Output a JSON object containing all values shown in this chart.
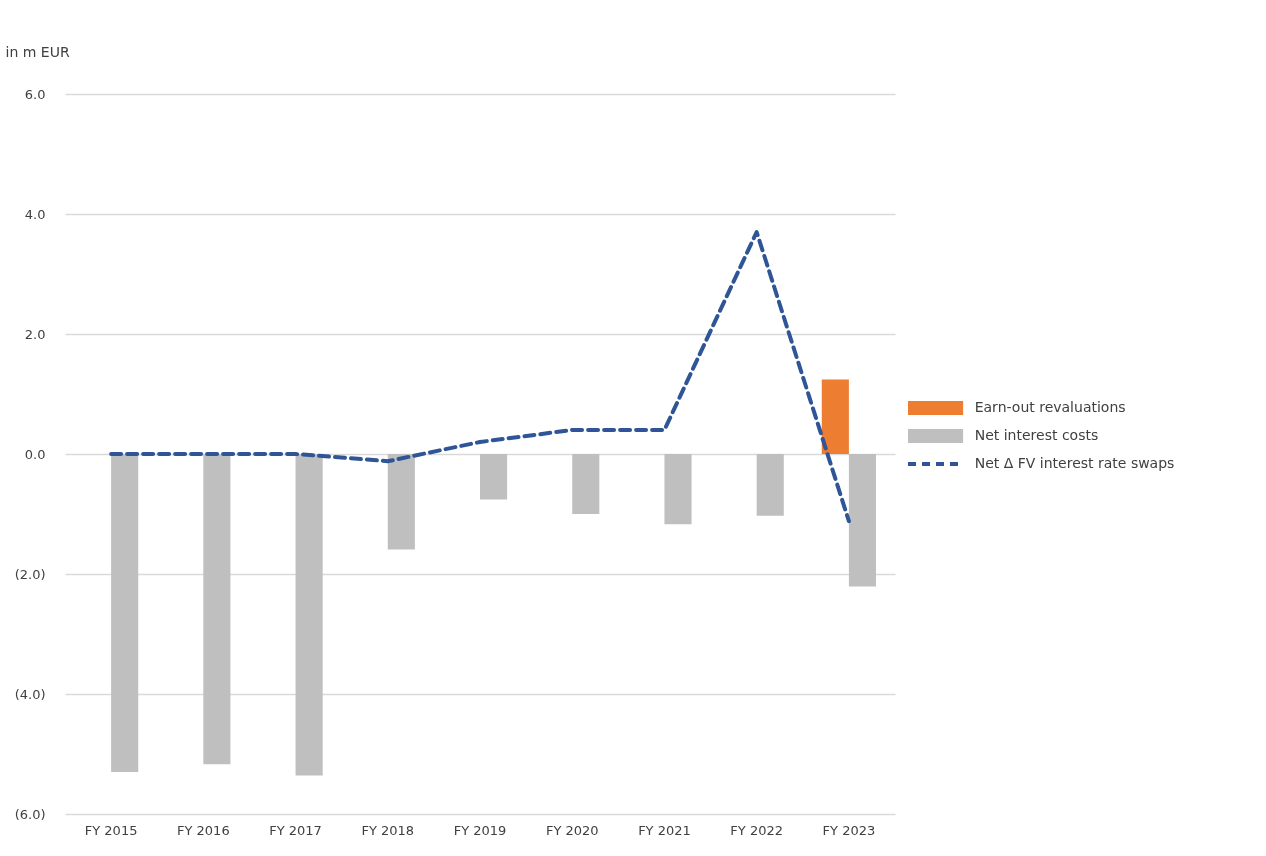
{
  "chart_data": {
    "type": "bar",
    "ylabel": "in m EUR",
    "categories": [
      "FY 2015",
      "FY 2016",
      "FY 2017",
      "FY 2018",
      "FY 2019",
      "FY 2020",
      "FY 2021",
      "FY 2022",
      "FY 2023"
    ],
    "series": [
      {
        "name": "Earn-out revaluations",
        "color": "#ed7d31",
        "values": [
          null,
          null,
          null,
          null,
          null,
          null,
          null,
          null,
          1.24
        ]
      },
      {
        "name": "Net interest costs",
        "color": "#bfbfbf",
        "values": [
          -5.3,
          -5.17,
          -5.36,
          -1.59,
          -0.76,
          -1.0,
          -1.17,
          -1.03,
          -2.21
        ]
      },
      {
        "name": "Net Δ FV interest rate swaps",
        "type": "line",
        "color": "#2f5597",
        "line_style": "dashed",
        "values": [
          0.0,
          0.0,
          0.0,
          -0.12,
          0.2,
          0.4,
          0.4,
          3.7,
          -1.12
        ]
      }
    ],
    "ylim": [
      -6,
      6
    ],
    "yticks": [
      {
        "value": -6,
        "label": "(6.0)"
      },
      {
        "value": -4,
        "label": "(4.0)"
      },
      {
        "value": -2,
        "label": "(2.0)"
      },
      {
        "value": 0,
        "label": "0.0"
      },
      {
        "value": 2,
        "label": "2.0"
      },
      {
        "value": 4,
        "label": "4.0"
      },
      {
        "value": 6,
        "label": "6.0"
      }
    ],
    "grid": "y",
    "legend": "right"
  }
}
